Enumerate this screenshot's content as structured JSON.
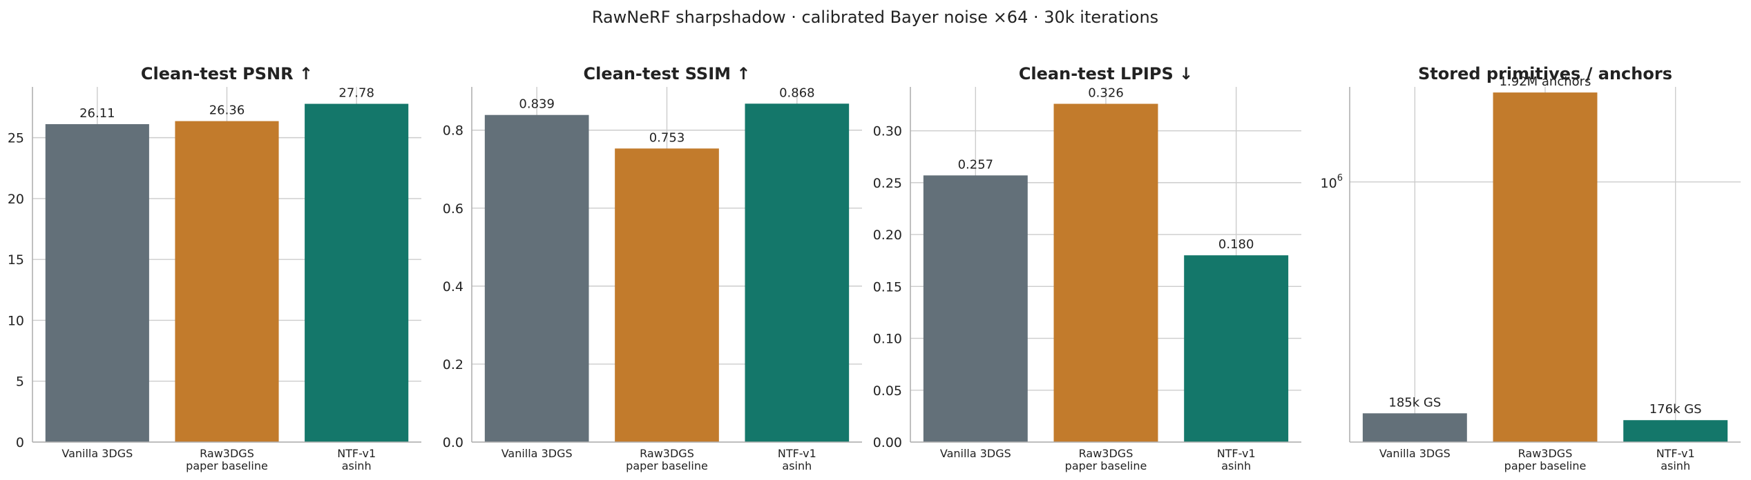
{
  "figure": {
    "suptitle": "RawNeRF sharpshadow · calibrated Bayer noise ×64 · 30k iterations"
  },
  "colors": {
    "Vanilla 3DGS": "#637079",
    "Raw3DGS paper baseline": "#c27b2c",
    "NTF-v1 asinh": "#14776a"
  },
  "chart_data": [
    {
      "type": "bar",
      "title": "Clean-test PSNR ↑",
      "categories": [
        [
          "Vanilla 3DGS"
        ],
        [
          "Raw3DGS",
          "paper baseline"
        ],
        [
          "NTF-v1",
          "asinh"
        ]
      ],
      "values": [
        26.11,
        26.36,
        27.78
      ],
      "value_labels": [
        "26.11",
        "26.36",
        "27.78"
      ],
      "ylim": [
        0,
        29.17
      ],
      "yticks": [
        0,
        5,
        10,
        15,
        20,
        25
      ],
      "ytick_labels": [
        "0",
        "5",
        "10",
        "15",
        "20",
        "25"
      ],
      "scale": "linear",
      "grid": true
    },
    {
      "type": "bar",
      "title": "Clean-test SSIM ↑",
      "categories": [
        [
          "Vanilla 3DGS"
        ],
        [
          "Raw3DGS",
          "paper baseline"
        ],
        [
          "NTF-v1",
          "asinh"
        ]
      ],
      "values": [
        0.839,
        0.753,
        0.868
      ],
      "value_labels": [
        "0.839",
        "0.753",
        "0.868"
      ],
      "ylim": [
        0,
        0.911
      ],
      "yticks": [
        0,
        0.2,
        0.4,
        0.6,
        0.8
      ],
      "ytick_labels": [
        "0.0",
        "0.2",
        "0.4",
        "0.6",
        "0.8"
      ],
      "scale": "linear",
      "grid": true
    },
    {
      "type": "bar",
      "title": "Clean-test LPIPS ↓",
      "categories": [
        [
          "Vanilla 3DGS"
        ],
        [
          "Raw3DGS",
          "paper baseline"
        ],
        [
          "NTF-v1",
          "asinh"
        ]
      ],
      "values": [
        0.257,
        0.326,
        0.18
      ],
      "value_labels": [
        "0.257",
        "0.326",
        "0.180"
      ],
      "ylim": [
        0,
        0.3423
      ],
      "yticks": [
        0,
        0.05,
        0.1,
        0.15,
        0.2,
        0.25,
        0.3
      ],
      "ytick_labels": [
        "0.00",
        "0.05",
        "0.10",
        "0.15",
        "0.20",
        "0.25",
        "0.30"
      ],
      "scale": "linear",
      "grid": true
    },
    {
      "type": "bar",
      "title": "Stored primitives / anchors",
      "categories": [
        [
          "Vanilla 3DGS"
        ],
        [
          "Raw3DGS",
          "paper baseline"
        ],
        [
          "NTF-v1",
          "asinh"
        ]
      ],
      "values": [
        185000,
        1920000,
        176000
      ],
      "value_labels": [
        "185k GS",
        "1.92M anchors",
        "176k GS"
      ],
      "ylim": [
        150000,
        2000000
      ],
      "yticks": [
        1000000
      ],
      "ytick_base": "10",
      "ytick_exp": "6",
      "scale": "log",
      "grid": true
    }
  ]
}
